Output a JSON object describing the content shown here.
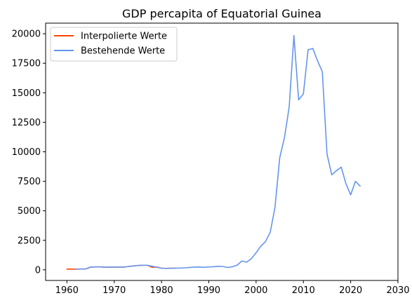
{
  "chart_data": {
    "type": "line",
    "title": "GDP percapita of Equatorial Guinea",
    "xlabel": "",
    "ylabel": "",
    "xlim": [
      1955.5,
      2030
    ],
    "ylim": [
      -900,
      20900
    ],
    "xticks": [
      1960,
      1970,
      1980,
      1990,
      2000,
      2010,
      2020,
      2030
    ],
    "yticks": [
      0,
      2500,
      5000,
      7500,
      10000,
      12500,
      15000,
      17500,
      20000
    ],
    "grid": false,
    "legend_position": "top-left",
    "series": [
      {
        "name": "Interpolierte Werte",
        "color": "#ff4500",
        "x": [
          1960,
          1961,
          1962,
          1963,
          1964,
          1965,
          1966,
          1967,
          1968,
          1969,
          1970,
          1971,
          1972,
          1973,
          1974,
          1975,
          1976,
          1977,
          1978,
          1979,
          1980,
          1981,
          1982,
          1983
        ],
        "y": [
          60,
          65,
          60,
          70,
          80,
          230,
          250,
          245,
          230,
          225,
          230,
          230,
          230,
          280,
          330,
          370,
          390,
          390,
          220,
          240,
          140,
          120,
          140,
          140
        ]
      },
      {
        "name": "Bestehende Werte",
        "color": "#6495ed",
        "x": [
          1962,
          1963,
          1964,
          1965,
          1966,
          1967,
          1968,
          1969,
          1970,
          1971,
          1972,
          1973,
          1974,
          1975,
          1976,
          1977,
          1980,
          1981,
          1982,
          1983,
          1984,
          1985,
          1986,
          1987,
          1988,
          1989,
          1990,
          1991,
          1992,
          1993,
          1994,
          1995,
          1996,
          1997,
          1998,
          1999,
          2000,
          2001,
          2002,
          2003,
          2004,
          2005,
          2006,
          2007,
          2008,
          2009,
          2010,
          2011,
          2012,
          2013,
          2014,
          2015,
          2016,
          2017,
          2018,
          2019,
          2020,
          2021,
          2022
        ],
        "y": [
          60,
          70,
          80,
          230,
          250,
          245,
          230,
          225,
          230,
          230,
          230,
          280,
          330,
          370,
          390,
          390,
          140,
          120,
          140,
          140,
          150,
          170,
          200,
          230,
          240,
          210,
          250,
          260,
          300,
          280,
          200,
          260,
          400,
          750,
          650,
          950,
          1450,
          2000,
          2400,
          3200,
          5300,
          9500,
          11200,
          13800,
          19850,
          14400,
          14900,
          18650,
          18750,
          17700,
          16800,
          9800,
          8050,
          8400,
          8700,
          7300,
          6350,
          7500,
          7100
        ]
      }
    ]
  }
}
